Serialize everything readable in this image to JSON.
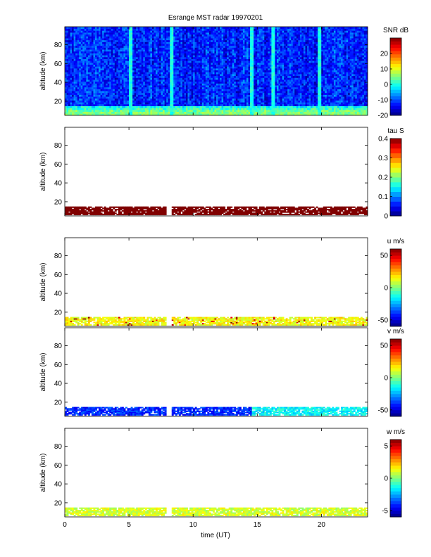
{
  "title": "Esrange MST radar 19970201",
  "xlabel": "time (UT)",
  "chart_data": [
    {
      "type": "heatmap",
      "id": "snr",
      "title": "Esrange MST radar 19970201",
      "ylabel": "altitude (km)",
      "xlabel": "",
      "colorbar_label": "SNR dB",
      "colorbar_ticks": [
        20,
        10,
        0,
        -10,
        -20
      ],
      "clim": [
        -20,
        30
      ],
      "xlim": [
        0,
        23.6
      ],
      "ylim": [
        5,
        99
      ],
      "yticks": [
        20,
        40,
        60,
        80
      ],
      "data_altitude_range": [
        5,
        99
      ],
      "description_values": {
        "background_level_db": -12,
        "low_altitude_level_db": 5,
        "bright_stripes_ut": [
          5.1,
          8.3,
          14.5,
          16.2,
          19.8
        ]
      }
    },
    {
      "type": "heatmap",
      "id": "tau",
      "ylabel": "altitude (km)",
      "colorbar_label": "tau S",
      "colorbar_ticks": [
        0.4,
        0.3,
        0.2,
        0.1,
        0
      ],
      "clim": [
        0,
        0.4
      ],
      "xlim": [
        0,
        23.6
      ],
      "ylim": [
        5,
        99
      ],
      "yticks": [
        20,
        40,
        60,
        80
      ],
      "data_altitude_range": [
        6,
        15
      ],
      "typical_value": 0.4
    },
    {
      "type": "heatmap",
      "id": "u",
      "ylabel": "altitude (km)",
      "colorbar_label": "u m/s",
      "colorbar_ticks": [
        50,
        0,
        -50
      ],
      "clim": [
        -60,
        60
      ],
      "xlim": [
        0,
        23.6
      ],
      "ylim": [
        5,
        99
      ],
      "yticks": [
        20,
        40,
        60,
        80
      ],
      "data_altitude_range": [
        6,
        15
      ],
      "typical_value": 15
    },
    {
      "type": "heatmap",
      "id": "v",
      "ylabel": "altitude (km)",
      "colorbar_label": "v m/s",
      "colorbar_ticks": [
        50,
        0,
        -50
      ],
      "clim": [
        -60,
        60
      ],
      "xlim": [
        0,
        23.6
      ],
      "ylim": [
        5,
        99
      ],
      "yticks": [
        20,
        40,
        60,
        80
      ],
      "data_altitude_range": [
        6,
        15
      ],
      "typical_value": -40
    },
    {
      "type": "heatmap",
      "id": "w",
      "ylabel": "altitude (km)",
      "xlabel": "time (UT)",
      "colorbar_label": "w m/s",
      "colorbar_ticks": [
        5,
        0,
        -5
      ],
      "clim": [
        -6,
        6
      ],
      "xlim": [
        0,
        23.6
      ],
      "xticks": [
        0,
        5,
        10,
        15,
        20
      ],
      "ylim": [
        5,
        99
      ],
      "yticks": [
        20,
        40,
        60,
        80
      ],
      "data_altitude_range": [
        6,
        15
      ],
      "typical_value": 1
    }
  ]
}
